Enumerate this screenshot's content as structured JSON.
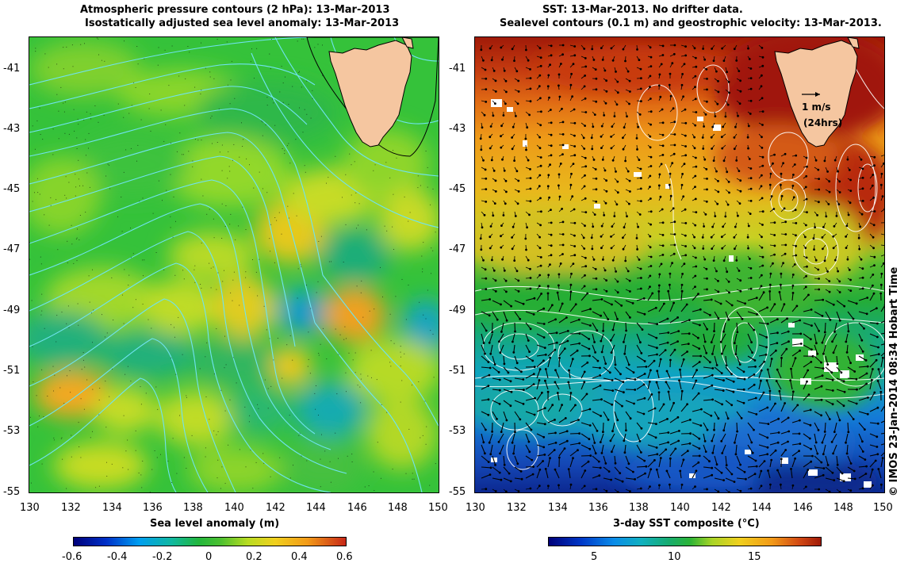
{
  "left_panel": {
    "title_line1": "Atmospheric pressure contours (2 hPa): 13-Mar-2013",
    "title_line2": "Isostatically adjusted sea level anomaly: 13-Mar-2013",
    "xlabel": "Sea level anomaly (m)",
    "colorbar_ticks": [
      "-0.6",
      "-0.4",
      "-0.2",
      "0",
      "0.2",
      "0.4",
      "0.6"
    ]
  },
  "right_panel": {
    "title_line1": "SST: 13-Mar-2013. No drifter data.",
    "title_line2": "Sealevel contours (0.1 m) and geostrophic velocity: 13-Mar-2013.",
    "xlabel": "3-day SST composite (°C)",
    "colorbar_ticks": [
      "5",
      "10",
      "15"
    ],
    "velocity_legend_value": "1 m/s",
    "velocity_legend_time": "(24hrs)"
  },
  "axes": {
    "x_ticks": [
      "130",
      "132",
      "134",
      "136",
      "138",
      "140",
      "142",
      "144",
      "146",
      "148",
      "150"
    ],
    "y_ticks": [
      "-41",
      "-43",
      "-45",
      "-47",
      "-49",
      "-51",
      "-53",
      "-55"
    ]
  },
  "chart_data": [
    {
      "type": "heatmap",
      "title": "Atmospheric pressure contours (2 hPa): 13-Mar-2013 / Isostatically adjusted sea level anomaly: 13-Mar-2013",
      "xlabel": "",
      "ylabel": "",
      "xlim": [
        130,
        150
      ],
      "ylim": [
        -55,
        -40
      ],
      "colorbar_label": "Sea level anomaly (m)",
      "colorbar_range": [
        -0.6,
        0.6
      ],
      "features": [
        {
          "lon": 143.3,
          "lat": -49.2,
          "value": -0.25
        },
        {
          "lon": 149.8,
          "lat": -49.7,
          "value": -0.2
        },
        {
          "lon": 146.3,
          "lat": -49.4,
          "value": 0.35
        },
        {
          "lon": 131.7,
          "lat": -51.8,
          "value": 0.35
        },
        {
          "lon": 142.4,
          "lat": -46.6,
          "value": 0.25
        },
        {
          "lon": 139.5,
          "lat": -41.3,
          "value": -0.05
        }
      ]
    },
    {
      "type": "heatmap",
      "title": "SST: 13-Mar-2013. No drifter data. / Sealevel contours (0.1 m) and geostrophic velocity: 13-Mar-2013.",
      "xlabel": "",
      "ylabel": "",
      "xlim": [
        130,
        150
      ],
      "ylim": [
        -55,
        -40
      ],
      "colorbar_label": "3-day SST composite (°C)",
      "colorbar_range": [
        2,
        19
      ],
      "features": [
        {
          "lat_band": [
            -42,
            -40
          ],
          "sst": 17
        },
        {
          "lat_band": [
            -44,
            -42
          ],
          "sst": 15
        },
        {
          "lat_band": [
            -48,
            -44
          ],
          "sst": 13
        },
        {
          "lat_band": [
            -51,
            -48
          ],
          "sst": 10
        },
        {
          "lat_band": [
            -53,
            -51
          ],
          "sst": 7
        },
        {
          "lat_band": [
            -55,
            -53
          ],
          "sst": 5
        }
      ]
    }
  ],
  "credit": "© IMOS 23-Jan-2014 08:34 Hobart Time",
  "colors": {
    "land": "#f5c6a0",
    "contour_left": "#6fe3f0",
    "contour_right": "#ffffff"
  }
}
